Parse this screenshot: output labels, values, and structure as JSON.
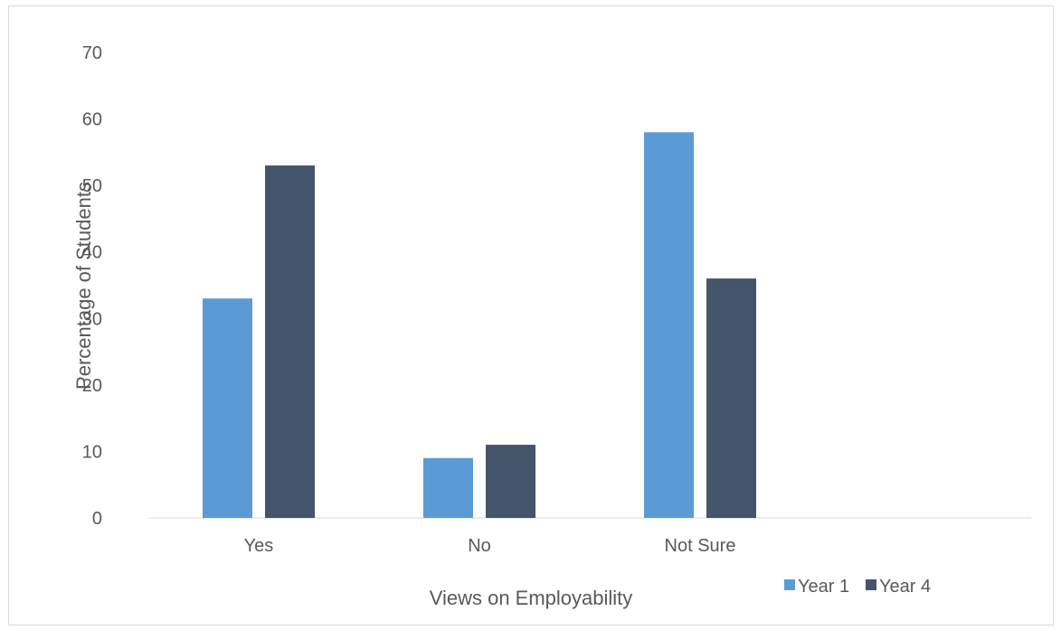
{
  "chart_data": {
    "type": "bar",
    "categories": [
      "Yes",
      "No",
      "Not Sure"
    ],
    "series": [
      {
        "name": "Year 1",
        "values": [
          33,
          9,
          58
        ],
        "color": "#5b9bd5"
      },
      {
        "name": "Year 4",
        "values": [
          53,
          11,
          36
        ],
        "color": "#44546a"
      }
    ],
    "xlabel": "Views on Employability",
    "ylabel": "Percentage of Students",
    "ylim": [
      0,
      70
    ],
    "yticks": [
      0,
      10,
      20,
      30,
      40,
      50,
      60,
      70
    ],
    "grid": false,
    "legend_position": "bottom-right"
  }
}
